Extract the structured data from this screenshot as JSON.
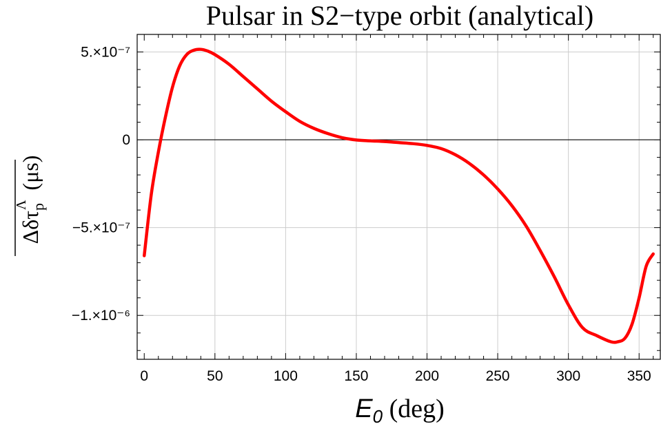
{
  "chart_data": {
    "type": "line",
    "title": "Pulsar in S2−type orbit  (analytical)",
    "xlabel_main": "E",
    "xlabel_sub": "0",
    "xlabel_unit": " (deg)",
    "ylabel": "Δδτ",
    "ylabel_sub": "p",
    "ylabel_sup": "Λ",
    "ylabel_unit": "(μs)",
    "xlim": [
      -5,
      365
    ],
    "ylim": [
      -1.25e-06,
      6e-07
    ],
    "x_ticks": [
      0,
      50,
      100,
      150,
      200,
      250,
      300,
      350
    ],
    "x_tick_labels": [
      "0",
      "50",
      "100",
      "150",
      "200",
      "250",
      "300",
      "350"
    ],
    "y_ticks": [
      5e-07,
      0,
      -5e-07,
      -1e-06
    ],
    "y_tick_labels": [
      "5.×10⁻⁷",
      "0",
      "−5.×10⁻⁷",
      "−1.×10⁻⁶"
    ],
    "grid": true,
    "line_color": "#ff0000",
    "series": [
      {
        "x": [
          0,
          5,
          10,
          15,
          20,
          25,
          30,
          35,
          40,
          45,
          50,
          60,
          70,
          80,
          90,
          100,
          110,
          120,
          130,
          140,
          150,
          160,
          170,
          180,
          190,
          200,
          210,
          220,
          230,
          240,
          250,
          260,
          270,
          280,
          290,
          300,
          310,
          320,
          330,
          335,
          340,
          345,
          350,
          355,
          360
        ],
        "y": [
          -6.6e-07,
          -3.1e-07,
          -7e-08,
          1.3e-07,
          3e-07,
          4.2e-07,
          4.85e-07,
          5.1e-07,
          5.15e-07,
          5.05e-07,
          4.85e-07,
          4.3e-07,
          3.6e-07,
          2.9e-07,
          2.2e-07,
          1.6e-07,
          1.05e-07,
          6.5e-08,
          3.5e-08,
          1.2e-08,
          -1e-09,
          -6e-09,
          -1e-08,
          -1.6e-08,
          -2.2e-08,
          -3.2e-08,
          -5e-08,
          -8.5e-08,
          -1.35e-07,
          -2e-07,
          -2.8e-07,
          -3.75e-07,
          -4.9e-07,
          -6.3e-07,
          -7.8e-07,
          -9.4e-07,
          -1.07e-06,
          -1.115e-06,
          -1.15e-06,
          -1.15e-06,
          -1.13e-06,
          -1.05e-06,
          -9e-07,
          -7.2e-07,
          -6.5e-07
        ]
      }
    ]
  }
}
